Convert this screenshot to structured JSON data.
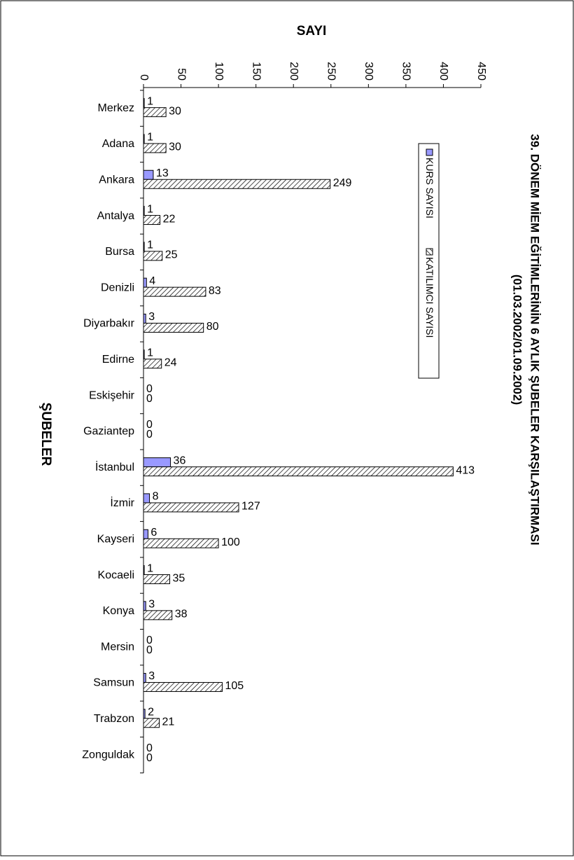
{
  "chart_data": {
    "type": "barh",
    "title": "39. DÖNEM MİEM EĞİTİMLERİNİN 6 AYLIK ŞUBELER KARŞILAŞTIRMASI",
    "subtitle": "(01.03.2002/01.09.2002)",
    "x_label": "SAYI",
    "y_label": "ŞUBELER",
    "categories": [
      "Merkez",
      "Adana",
      "Ankara",
      "Antalya",
      "Bursa",
      "Denizli",
      "Diyarbakır",
      "Edirne",
      "Eskişehir",
      "Gaziantep",
      "İstanbul",
      "İzmir",
      "Kayseri",
      "Kocaeli",
      "Konya",
      "Mersin",
      "Samsun",
      "Trabzon",
      "Zonguldak"
    ],
    "series": [
      {
        "name": "KURS SAYISI",
        "color": "#9999ff",
        "hatch": false,
        "values": [
          1,
          1,
          13,
          1,
          1,
          4,
          3,
          1,
          0,
          0,
          36,
          8,
          6,
          1,
          3,
          0,
          3,
          2,
          0
        ]
      },
      {
        "name": "KATILIMCI SAYISI",
        "color": "#000000",
        "hatch": true,
        "values": [
          30,
          30,
          249,
          22,
          25,
          83,
          80,
          24,
          0,
          0,
          413,
          127,
          100,
          35,
          38,
          0,
          105,
          21,
          0
        ]
      }
    ],
    "xlim": [
      0,
      450
    ],
    "xticks": [
      0,
      50,
      100,
      150,
      200,
      250,
      300,
      350,
      400,
      450
    ]
  }
}
